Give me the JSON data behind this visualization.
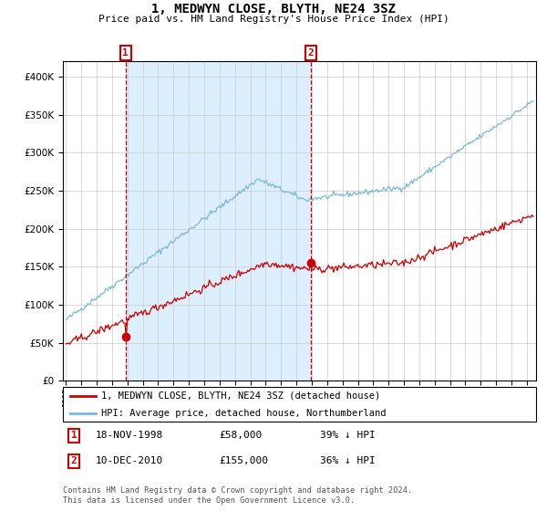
{
  "title": "1, MEDWYN CLOSE, BLYTH, NE24 3SZ",
  "subtitle": "Price paid vs. HM Land Registry's House Price Index (HPI)",
  "legend_entry1": "1, MEDWYN CLOSE, BLYTH, NE24 3SZ (detached house)",
  "legend_entry2": "HPI: Average price, detached house, Northumberland",
  "purchase1_date": "18-NOV-1998",
  "purchase1_price": "£58,000",
  "purchase1_pct": "39% ↓ HPI",
  "purchase2_date": "10-DEC-2010",
  "purchase2_price": "£155,000",
  "purchase2_pct": "36% ↓ HPI",
  "footer": "Contains HM Land Registry data © Crown copyright and database right 2024.\nThis data is licensed under the Open Government Licence v3.0.",
  "hpi_color": "#7ab8d9",
  "price_color": "#cc0000",
  "vline_color": "#cc0000",
  "shade_color": "#ddeeff",
  "dot_color": "#cc0000",
  "label_box_color": "#cc0000",
  "grid_color": "#cccccc",
  "background_color": "#ffffff",
  "ylim": [
    0,
    420000
  ],
  "ytick_values": [
    0,
    50000,
    100000,
    150000,
    200000,
    250000,
    300000,
    350000,
    400000
  ],
  "purchase1_year": 1998.88,
  "purchase1_price_val": 58000,
  "purchase2_year": 2010.94,
  "purchase2_price_val": 155000,
  "start_year": 1994.8,
  "end_year": 2025.6
}
